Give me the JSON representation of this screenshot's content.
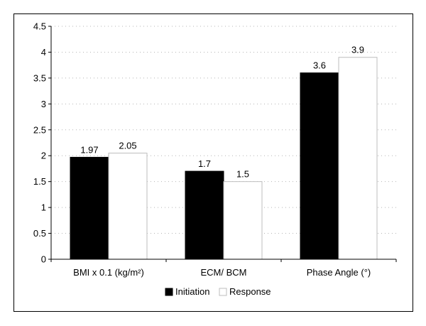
{
  "chart_data": {
    "type": "bar",
    "categories": [
      "BMI x 0.1 (kg/m²)",
      "ECM/ BCM",
      "Phase Angle (°)"
    ],
    "series": [
      {
        "name": "Initiation",
        "values": [
          1.97,
          1.7,
          3.6
        ],
        "labels": [
          "1.97",
          "1.7",
          "3.6"
        ],
        "color": "#000000"
      },
      {
        "name": "Response",
        "values": [
          2.05,
          1.5,
          3.9
        ],
        "labels": [
          "2.05",
          "1.5",
          "3.9"
        ],
        "color": "#ffffff"
      }
    ],
    "yticks": [
      "0",
      "0.5",
      "1",
      "1.5",
      "2",
      "2.5",
      "3",
      "3.5",
      "4",
      "4.5"
    ],
    "ylim": [
      0,
      4.5
    ],
    "grid": true,
    "legend_position": "bottom-center",
    "title": "",
    "xlabel": "",
    "ylabel": ""
  }
}
